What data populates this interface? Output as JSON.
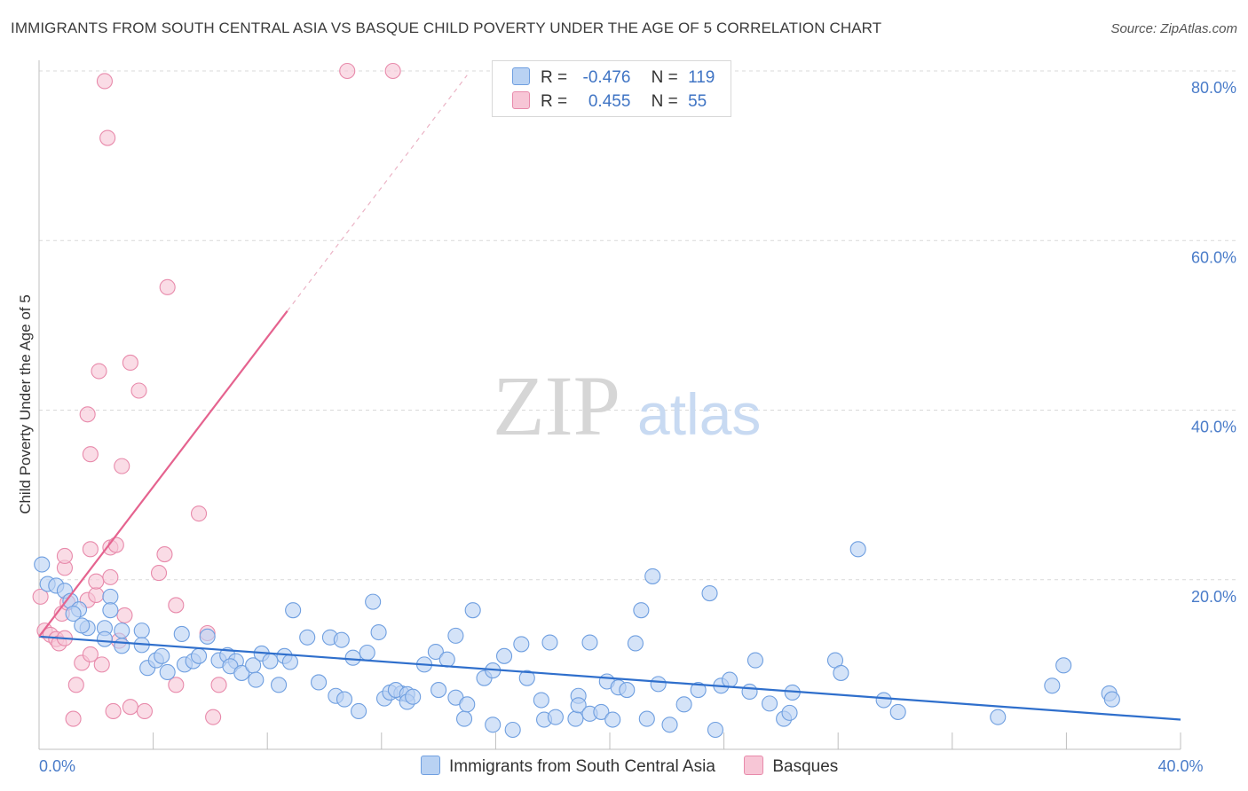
{
  "header": {
    "title": "IMMIGRANTS FROM SOUTH CENTRAL ASIA VS BASQUE CHILD POVERTY UNDER THE AGE OF 5 CORRELATION CHART",
    "source": "Source: ZipAtlas.com"
  },
  "watermark": {
    "part1": "ZIP",
    "part2": "atlas"
  },
  "colors": {
    "blue_fill": "#b9d2f3",
    "blue_stroke": "#6f9fe0",
    "blue_line": "#2f6fcc",
    "pink_fill": "#f7c6d6",
    "pink_stroke": "#e88aab",
    "pink_line": "#e5638f",
    "tick_text": "#4a7cc9",
    "grid": "#d9d9d9"
  },
  "stats": [
    {
      "r_label": "R =",
      "r_value": "-0.476",
      "n_label": "N =",
      "n_value": "119",
      "color": "#b9d2f3",
      "border": "#6f9fe0"
    },
    {
      "r_label": "R =",
      "r_value": "0.455",
      "n_label": "N =",
      "n_value": "55",
      "color": "#f7c6d6",
      "border": "#e88aab"
    }
  ],
  "legend": [
    {
      "label": "Immigrants from South Central Asia",
      "color": "#b9d2f3",
      "border": "#6f9fe0"
    },
    {
      "label": "Basques",
      "color": "#f7c6d6",
      "border": "#e88aab"
    }
  ],
  "chart_data": {
    "type": "scatter",
    "title": "IMMIGRANTS FROM SOUTH CENTRAL ASIA VS BASQUE CHILD POVERTY UNDER THE AGE OF 5 CORRELATION CHART",
    "xlabel": "",
    "ylabel": "Child Poverty Under the Age of 5",
    "xlim": [
      0,
      40
    ],
    "ylim": [
      0,
      80
    ],
    "x_tick_labels": [
      {
        "value": 0,
        "label": "0.0%"
      },
      {
        "value": 40,
        "label": "40.0%"
      }
    ],
    "y_tick_labels": [
      {
        "value": 20,
        "label": "20.0%"
      },
      {
        "value": 40,
        "label": "40.0%"
      },
      {
        "value": 60,
        "label": "60.0%"
      },
      {
        "value": 80,
        "label": "80.0%"
      }
    ],
    "grid": true,
    "legend_position": "bottom",
    "series": [
      {
        "name": "Immigrants from South Central Asia",
        "trend": {
          "x": [
            0,
            40
          ],
          "y": [
            13.3,
            3.5
          ]
        },
        "points": [
          [
            0.1,
            21.8
          ],
          [
            0.3,
            19.5
          ],
          [
            0.6,
            19.3
          ],
          [
            0.9,
            18.7
          ],
          [
            1.1,
            17.5
          ],
          [
            1.4,
            16.5
          ],
          [
            1.2,
            16.0
          ],
          [
            2.5,
            18.0
          ],
          [
            2.5,
            16.4
          ],
          [
            2.3,
            14.3
          ],
          [
            1.7,
            14.3
          ],
          [
            1.5,
            14.6
          ],
          [
            2.9,
            14.0
          ],
          [
            3.6,
            14.0
          ],
          [
            2.3,
            13.0
          ],
          [
            2.9,
            12.2
          ],
          [
            3.6,
            12.3
          ],
          [
            3.8,
            9.6
          ],
          [
            4.1,
            10.5
          ],
          [
            4.3,
            11.0
          ],
          [
            4.5,
            9.1
          ],
          [
            5.0,
            13.6
          ],
          [
            5.1,
            10.0
          ],
          [
            5.4,
            10.4
          ],
          [
            5.6,
            11.0
          ],
          [
            5.9,
            13.3
          ],
          [
            6.3,
            10.5
          ],
          [
            6.6,
            11.1
          ],
          [
            6.9,
            10.4
          ],
          [
            6.7,
            9.8
          ],
          [
            7.1,
            9.0
          ],
          [
            7.5,
            9.9
          ],
          [
            7.8,
            11.3
          ],
          [
            7.6,
            8.2
          ],
          [
            8.1,
            10.4
          ],
          [
            8.6,
            11.0
          ],
          [
            8.8,
            10.3
          ],
          [
            8.9,
            16.4
          ],
          [
            8.4,
            7.6
          ],
          [
            9.4,
            13.2
          ],
          [
            9.8,
            7.9
          ],
          [
            10.2,
            13.2
          ],
          [
            10.4,
            6.3
          ],
          [
            10.6,
            12.9
          ],
          [
            10.7,
            5.9
          ],
          [
            11.0,
            10.8
          ],
          [
            11.5,
            11.4
          ],
          [
            11.2,
            4.5
          ],
          [
            11.7,
            17.4
          ],
          [
            11.9,
            13.8
          ],
          [
            12.1,
            6.0
          ],
          [
            12.3,
            6.7
          ],
          [
            12.7,
            6.6
          ],
          [
            12.5,
            7.0
          ],
          [
            12.9,
            6.5
          ],
          [
            12.9,
            5.6
          ],
          [
            13.1,
            6.2
          ],
          [
            13.5,
            10.0
          ],
          [
            13.9,
            11.5
          ],
          [
            14.0,
            7.0
          ],
          [
            14.3,
            10.6
          ],
          [
            14.6,
            13.4
          ],
          [
            14.6,
            6.1
          ],
          [
            14.9,
            3.6
          ],
          [
            15.0,
            5.3
          ],
          [
            15.2,
            16.4
          ],
          [
            15.6,
            8.4
          ],
          [
            15.9,
            9.3
          ],
          [
            15.9,
            2.9
          ],
          [
            16.3,
            11.0
          ],
          [
            16.6,
            2.3
          ],
          [
            16.9,
            12.4
          ],
          [
            17.1,
            8.4
          ],
          [
            17.6,
            5.8
          ],
          [
            17.7,
            3.5
          ],
          [
            17.9,
            12.6
          ],
          [
            18.1,
            3.8
          ],
          [
            18.8,
            3.6
          ],
          [
            18.9,
            6.3
          ],
          [
            18.9,
            5.2
          ],
          [
            19.3,
            4.2
          ],
          [
            19.3,
            12.6
          ],
          [
            19.7,
            4.4
          ],
          [
            19.9,
            8.0
          ],
          [
            20.1,
            3.5
          ],
          [
            20.3,
            7.3
          ],
          [
            20.6,
            7.0
          ],
          [
            20.9,
            12.5
          ],
          [
            21.1,
            16.4
          ],
          [
            21.3,
            3.6
          ],
          [
            21.5,
            20.4
          ],
          [
            21.7,
            7.7
          ],
          [
            22.1,
            2.9
          ],
          [
            22.6,
            5.3
          ],
          [
            23.1,
            7.0
          ],
          [
            23.5,
            18.4
          ],
          [
            23.7,
            2.3
          ],
          [
            23.9,
            7.5
          ],
          [
            24.2,
            8.2
          ],
          [
            24.9,
            6.8
          ],
          [
            25.1,
            10.5
          ],
          [
            25.6,
            5.4
          ],
          [
            26.1,
            3.6
          ],
          [
            26.3,
            4.3
          ],
          [
            26.4,
            6.7
          ],
          [
            27.9,
            10.5
          ],
          [
            28.1,
            9.0
          ],
          [
            28.7,
            23.6
          ],
          [
            29.6,
            5.8
          ],
          [
            30.1,
            4.4
          ],
          [
            33.6,
            3.8
          ],
          [
            35.5,
            7.5
          ],
          [
            35.9,
            9.9
          ],
          [
            37.5,
            6.6
          ],
          [
            37.6,
            5.9
          ]
        ]
      },
      {
        "name": "Basques",
        "trend": {
          "x": [
            0,
            15
          ],
          "y": [
            13.3,
            79.5
          ]
        },
        "points": [
          [
            0.05,
            18.0
          ],
          [
            0.2,
            14.0
          ],
          [
            0.4,
            13.5
          ],
          [
            0.6,
            13.0
          ],
          [
            0.7,
            12.5
          ],
          [
            0.8,
            16.0
          ],
          [
            0.9,
            13.1
          ],
          [
            0.9,
            21.4
          ],
          [
            0.9,
            22.8
          ],
          [
            1.0,
            17.3
          ],
          [
            1.2,
            3.6
          ],
          [
            1.3,
            7.6
          ],
          [
            1.5,
            10.2
          ],
          [
            1.7,
            17.6
          ],
          [
            1.7,
            39.5
          ],
          [
            1.8,
            23.6
          ],
          [
            1.8,
            11.2
          ],
          [
            1.8,
            34.8
          ],
          [
            2.0,
            18.2
          ],
          [
            2.0,
            19.8
          ],
          [
            2.1,
            44.6
          ],
          [
            2.2,
            10.0
          ],
          [
            2.3,
            78.8
          ],
          [
            2.4,
            72.1
          ],
          [
            2.5,
            23.8
          ],
          [
            2.5,
            20.3
          ],
          [
            2.6,
            4.5
          ],
          [
            2.7,
            24.1
          ],
          [
            2.8,
            12.8
          ],
          [
            2.9,
            33.4
          ],
          [
            3.0,
            15.8
          ],
          [
            3.2,
            45.6
          ],
          [
            3.2,
            5.0
          ],
          [
            3.5,
            42.3
          ],
          [
            3.7,
            4.5
          ],
          [
            4.2,
            20.8
          ],
          [
            4.4,
            23.0
          ],
          [
            4.5,
            54.5
          ],
          [
            4.8,
            7.6
          ],
          [
            4.8,
            17.0
          ],
          [
            5.6,
            27.8
          ],
          [
            5.9,
            13.7
          ],
          [
            6.1,
            3.8
          ],
          [
            6.3,
            7.6
          ],
          [
            10.8,
            80.0
          ],
          [
            12.4,
            80.0
          ]
        ]
      }
    ]
  }
}
